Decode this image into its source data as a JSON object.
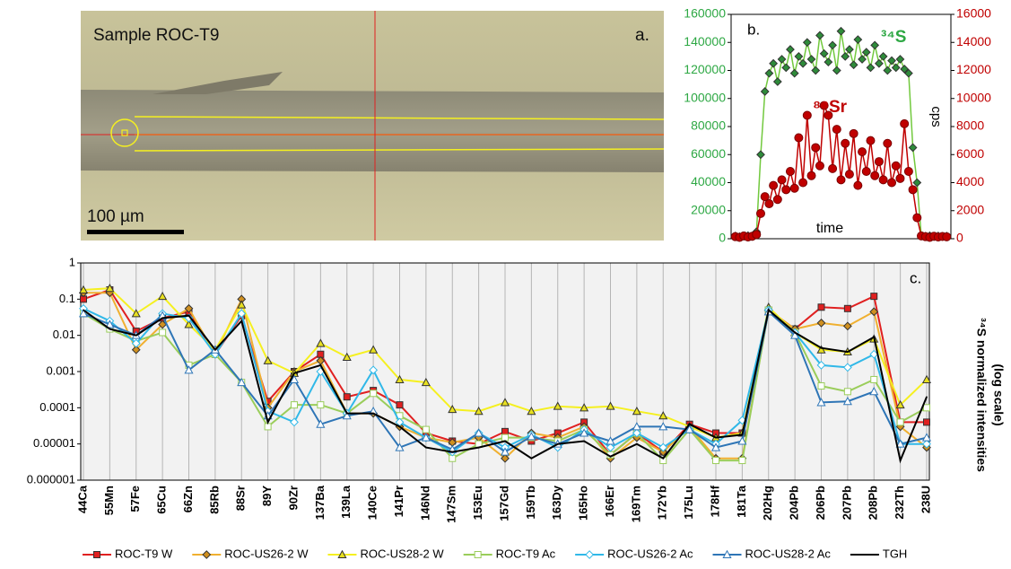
{
  "panel_a": {
    "label": "a.",
    "caption": "Sample ROC-T9",
    "scale_bar": "100 µm"
  },
  "chart_data": [
    {
      "type": "line",
      "label": "b.",
      "x_label": "time",
      "y2_label": "cps",
      "x": [
        0,
        1,
        2,
        3,
        4,
        5,
        6,
        7,
        8,
        9,
        10,
        11,
        12,
        13,
        14,
        15,
        16,
        17,
        18,
        19,
        20,
        21,
        22,
        23,
        24,
        25,
        26,
        27,
        28,
        29,
        30,
        31,
        32,
        33,
        34,
        35,
        36,
        37,
        38,
        39,
        40,
        41,
        42,
        43,
        44,
        45,
        46,
        47,
        48,
        49,
        50
      ],
      "xlim": [
        -1,
        51
      ],
      "ylim": [
        0,
        160000
      ],
      "yticks": [
        0,
        20000,
        40000,
        60000,
        80000,
        100000,
        120000,
        140000,
        160000
      ],
      "y2lim": [
        0,
        16000
      ],
      "y2ticks": [
        0,
        2000,
        4000,
        6000,
        8000,
        10000,
        12000,
        14000,
        16000
      ],
      "y_color": "#2ea844",
      "y2_color": "#c00000",
      "series": [
        {
          "name": "³⁴S",
          "color": "#72c93e",
          "marker": "diamond",
          "marker_color": "#2e8b3a",
          "values": [
            2000,
            1500,
            1800,
            2200,
            1600,
            5000,
            60000,
            105000,
            118000,
            125000,
            112000,
            128000,
            122000,
            135000,
            118000,
            130000,
            125000,
            140000,
            128000,
            120000,
            145000,
            132000,
            126000,
            138000,
            120000,
            148000,
            130000,
            135000,
            124000,
            142000,
            128000,
            133000,
            122000,
            138000,
            125000,
            130000,
            120000,
            127000,
            122000,
            128000,
            121000,
            118000,
            65000,
            40000,
            2000,
            1800,
            2100,
            1500,
            2000,
            1700,
            1900
          ]
        },
        {
          "name": "⁸⁸Sr",
          "axis": "y2",
          "color": "#c00000",
          "marker": "circle",
          "marker_color": "#c00000",
          "values": [
            150,
            100,
            200,
            120,
            180,
            300,
            1800,
            3000,
            2500,
            3800,
            2800,
            4200,
            3500,
            4800,
            3600,
            7200,
            4000,
            8800,
            4500,
            6500,
            5200,
            9500,
            8800,
            5000,
            7800,
            4200,
            6800,
            4600,
            7500,
            3800,
            6200,
            4800,
            7000,
            4500,
            5500,
            4200,
            6800,
            4000,
            5200,
            4300,
            8200,
            4800,
            3500,
            1500,
            200,
            150,
            100,
            180,
            120,
            160,
            140
          ]
        }
      ]
    },
    {
      "type": "line",
      "label": "c.",
      "log_scale": true,
      "grid": true,
      "y_label": "³⁴S normalized intensities",
      "y_label_note": "(log scale)",
      "categories": [
        "44Ca",
        "55Mn",
        "57Fe",
        "65Cu",
        "66Zn",
        "85Rb",
        "88Sr",
        "89Y",
        "90Zr",
        "137Ba",
        "139La",
        "140Ce",
        "141Pr",
        "146Nd",
        "147Sm",
        "153Eu",
        "157Gd",
        "159Tb",
        "163Dy",
        "165Ho",
        "166Er",
        "169Tm",
        "172Yb",
        "175Lu",
        "178Hf",
        "181Ta",
        "202Hg",
        "204Pb",
        "206Pb",
        "207Pb",
        "208Pb",
        "232Th",
        "238U"
      ],
      "ylim": [
        1e-06,
        1
      ],
      "yticks": [
        1,
        0.1,
        0.01,
        0.001,
        0.0001,
        1e-05,
        1e-06
      ],
      "series": [
        {
          "name": "ROC-T9 W",
          "color": "#e02020",
          "marker": "square",
          "marker_color": "#e02020",
          "values": [
            0.1,
            0.18,
            0.013,
            0.03,
            0.045,
            0.003,
            0.035,
            0.00015,
            0.001,
            0.003,
            0.0002,
            0.0003,
            0.00012,
            2e-05,
            1.2e-05,
            1e-05,
            2.2e-05,
            1.2e-05,
            2e-05,
            4e-05,
            5e-06,
            2e-05,
            6e-06,
            3.5e-05,
            2e-05,
            2e-05,
            0.05,
            0.015,
            0.06,
            0.055,
            0.12,
            4e-05,
            4e-05
          ]
        },
        {
          "name": "ROC-US26-2 W",
          "color": "#f0b030",
          "marker": "diamond",
          "marker_color": "#d09020",
          "values": [
            0.15,
            0.15,
            0.004,
            0.02,
            0.055,
            0.003,
            0.1,
            0.0001,
            0.001,
            0.002,
            7e-05,
            7e-05,
            3e-05,
            1.5e-05,
            1.1e-05,
            1.5e-05,
            4e-06,
            2e-05,
            1.5e-05,
            3e-05,
            4e-06,
            1.5e-05,
            6e-06,
            3e-05,
            4e-06,
            4e-06,
            0.05,
            0.015,
            0.022,
            0.018,
            0.045,
            3e-05,
            8e-06
          ]
        },
        {
          "name": "ROC-US28-2 W",
          "color": "#f5f020",
          "marker": "triangle",
          "marker_color": "#e8e020",
          "values": [
            0.18,
            0.2,
            0.04,
            0.12,
            0.02,
            0.004,
            0.07,
            0.002,
            0.0009,
            0.006,
            0.0025,
            0.004,
            0.0006,
            0.0005,
            9e-05,
            8e-05,
            0.00014,
            8e-05,
            0.00011,
            0.0001,
            0.00011,
            8e-05,
            6e-05,
            3e-05,
            1.5e-05,
            2e-05,
            0.06,
            0.012,
            0.004,
            0.0035,
            0.008,
            0.00012,
            0.0006
          ]
        },
        {
          "name": "ROC-T9 Ac",
          "color": "#9acd5a",
          "marker": "square-open",
          "marker_color": "#9acd5a",
          "values": [
            0.04,
            0.015,
            0.007,
            0.012,
            0.0015,
            0.003,
            0.0005,
            3e-05,
            0.00012,
            0.00012,
            7e-05,
            0.00025,
            6e-05,
            2.5e-05,
            4e-06,
            1e-05,
            1.5e-05,
            1.5e-05,
            1.2e-05,
            2.5e-05,
            5e-06,
            2e-05,
            3.5e-06,
            2.5e-05,
            3.5e-06,
            3.5e-06,
            0.05,
            0.012,
            0.0004,
            0.00028,
            0.0006,
            4e-05,
            0.0001
          ]
        },
        {
          "name": "ROC-US26-2 Ac",
          "color": "#30b8e8",
          "marker": "diamond-open",
          "marker_color": "#30b8e8",
          "values": [
            0.055,
            0.025,
            0.006,
            0.04,
            0.03,
            0.003,
            0.04,
            8e-05,
            4e-05,
            0.001,
            7e-05,
            0.0011,
            4e-05,
            1.5e-05,
            6e-06,
            2e-05,
            8e-06,
            1.8e-05,
            8e-06,
            2.5e-05,
            8e-06,
            2e-05,
            8e-06,
            2.5e-05,
            1e-05,
            4.5e-05,
            0.05,
            0.012,
            0.0015,
            0.0013,
            0.003,
            1e-05,
            1e-05
          ]
        },
        {
          "name": "ROC-US28-2 Ac",
          "color": "#2e75b6",
          "marker": "triangle-open",
          "marker_color": "#2e75b6",
          "values": [
            0.04,
            0.02,
            0.01,
            0.035,
            0.0011,
            0.004,
            0.0005,
            6e-05,
            0.0006,
            3.5e-05,
            6e-05,
            8e-05,
            8e-06,
            1.5e-05,
            7e-06,
            2e-05,
            6e-06,
            1.6e-05,
            1e-05,
            2e-05,
            1.2e-05,
            3e-05,
            3e-05,
            2.5e-05,
            8e-06,
            1.2e-05,
            0.045,
            0.01,
            0.00014,
            0.00015,
            0.00028,
            1e-05,
            1.5e-05
          ]
        },
        {
          "name": "TGH",
          "color": "#000000",
          "marker": "none",
          "marker_color": "#000000",
          "values": [
            0.05,
            0.015,
            0.01,
            0.03,
            0.035,
            0.004,
            0.025,
            4e-05,
            0.0009,
            0.0015,
            7e-05,
            7e-05,
            3e-05,
            8e-06,
            6e-06,
            8e-06,
            1.2e-05,
            4e-06,
            1e-05,
            1.2e-05,
            4.5e-06,
            1e-05,
            4e-06,
            3.5e-05,
            1.5e-05,
            1.8e-05,
            0.05,
            0.012,
            0.0045,
            0.0035,
            0.009,
            3.5e-06,
            0.0002
          ]
        }
      ]
    }
  ]
}
